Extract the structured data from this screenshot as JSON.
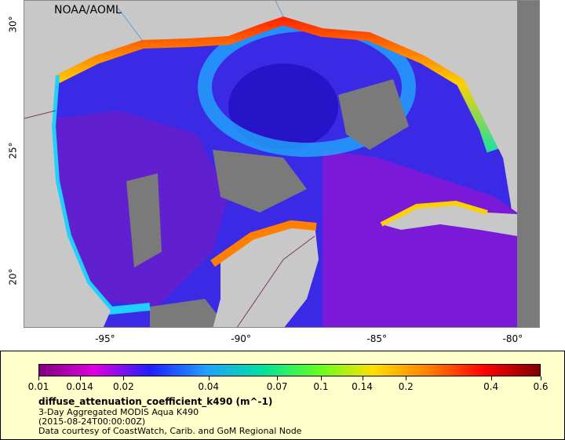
{
  "credit": "NOAA/AOML",
  "map": {
    "lon_range": [
      -98,
      -79
    ],
    "lat_range": [
      18,
      31
    ],
    "x_ticks": [
      {
        "value": -95,
        "label": "-95°"
      },
      {
        "value": -90,
        "label": "-90°"
      },
      {
        "value": -85,
        "label": "-85°"
      },
      {
        "value": -80,
        "label": "-80°"
      }
    ],
    "y_ticks": [
      {
        "value": 30,
        "label": "30°"
      },
      {
        "value": 25,
        "label": "25°"
      },
      {
        "value": 20,
        "label": "20°"
      }
    ]
  },
  "legend": {
    "variable": "diffuse_attenuation_coefficient_k490 (m^-1)",
    "line1": "3-Day Aggregated MODIS Aqua K490",
    "line2": "(2015-08-24T00:00:00Z)",
    "line3": "Data courtesy of CoastWatch, Carib. and GoM Regional Node",
    "scale": "log",
    "ticks": [
      "0.01",
      "0.014",
      "0.02",
      "0.04",
      "0.07",
      "0.1",
      "0.14",
      "0.2",
      "0.4",
      "0.6"
    ],
    "tick_values": [
      0.01,
      0.014,
      0.02,
      0.04,
      0.07,
      0.1,
      0.14,
      0.2,
      0.4,
      0.6
    ],
    "colors": [
      "#800080",
      "#e000e0",
      "#2020ff",
      "#20a0ff",
      "#00e0a0",
      "#60ff20",
      "#ffe000",
      "#ff8000",
      "#ff0000",
      "#800000"
    ]
  }
}
